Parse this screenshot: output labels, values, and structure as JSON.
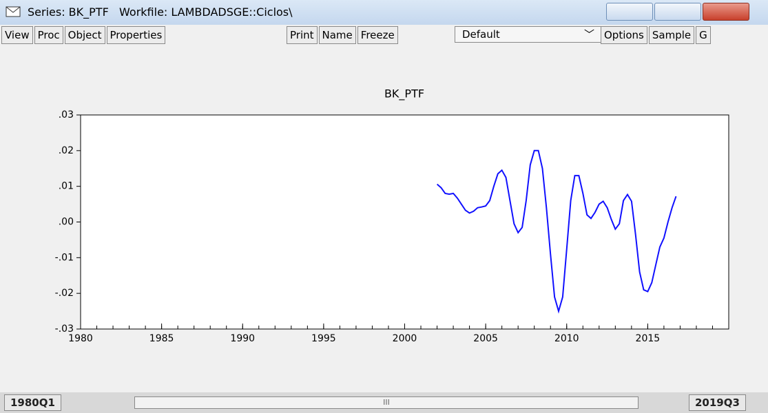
{
  "window": {
    "title": "Series: BK_PTF   Workfile: LAMBDADSGE::Ciclos\\"
  },
  "toolbar": {
    "buttons": [
      "View",
      "Proc",
      "Object",
      "Properties"
    ],
    "buttons_mid": [
      "Print",
      "Name",
      "Freeze"
    ],
    "dropdown": "Default",
    "buttons_right": [
      "Options",
      "Sample",
      "G"
    ]
  },
  "chart_data": {
    "type": "line",
    "title": "BK_PTF",
    "color": "#1010ff",
    "x": [
      2002.0,
      2002.25,
      2002.5,
      2002.75,
      2003.0,
      2003.25,
      2003.5,
      2003.75,
      2004.0,
      2004.25,
      2004.5,
      2004.75,
      2005.0,
      2005.25,
      2005.5,
      2005.75,
      2006.0,
      2006.25,
      2006.5,
      2006.75,
      2007.0,
      2007.25,
      2007.5,
      2007.75,
      2008.0,
      2008.25,
      2008.5,
      2008.75,
      2009.0,
      2009.25,
      2009.5,
      2009.75,
      2010.0,
      2010.25,
      2010.5,
      2010.75,
      2011.0,
      2011.25,
      2011.5,
      2011.75,
      2012.0,
      2012.25,
      2012.5,
      2012.75,
      2013.0,
      2013.25,
      2013.5,
      2013.75,
      2014.0,
      2014.25,
      2014.5,
      2014.75,
      2015.0,
      2015.25,
      2015.5,
      2015.75,
      2016.0,
      2016.25,
      2016.5,
      2016.75
    ],
    "values": [
      0.0106,
      0.0096,
      0.008,
      0.0078,
      0.008,
      0.0067,
      0.005,
      0.0033,
      0.0025,
      0.003,
      0.004,
      0.0042,
      0.0045,
      0.006,
      0.01,
      0.0135,
      0.0145,
      0.0125,
      0.006,
      -0.0005,
      -0.003,
      -0.0015,
      0.006,
      0.016,
      0.02,
      0.02,
      0.015,
      0.004,
      -0.009,
      -0.021,
      -0.025,
      -0.021,
      -0.0075,
      0.006,
      0.013,
      0.013,
      0.008,
      0.002,
      0.001,
      0.0027,
      0.005,
      0.0058,
      0.004,
      0.0008,
      -0.002,
      -0.0005,
      0.006,
      0.0077,
      0.0058,
      -0.0035,
      -0.014,
      -0.019,
      -0.0195,
      -0.017,
      -0.012,
      -0.007,
      -0.0045,
      0.0,
      0.004,
      0.0072
    ],
    "xlim": [
      1980,
      2020
    ],
    "xticks": [
      1980,
      1985,
      1990,
      1995,
      2000,
      2005,
      2010,
      2015
    ],
    "ylim": [
      -0.03,
      0.03
    ],
    "yticks": [
      {
        "value": 0.03,
        "label": ".03"
      },
      {
        "value": 0.02,
        "label": ".02"
      },
      {
        "value": 0.01,
        "label": ".01"
      },
      {
        "value": 0,
        "label": ".00"
      },
      {
        "value": -0.01,
        "label": "-.01"
      },
      {
        "value": -0.02,
        "label": "-.02"
      },
      {
        "value": -0.03,
        "label": "-.03"
      }
    ]
  },
  "range": {
    "start": "1980Q1",
    "scroll": "III",
    "end": "2019Q3"
  }
}
